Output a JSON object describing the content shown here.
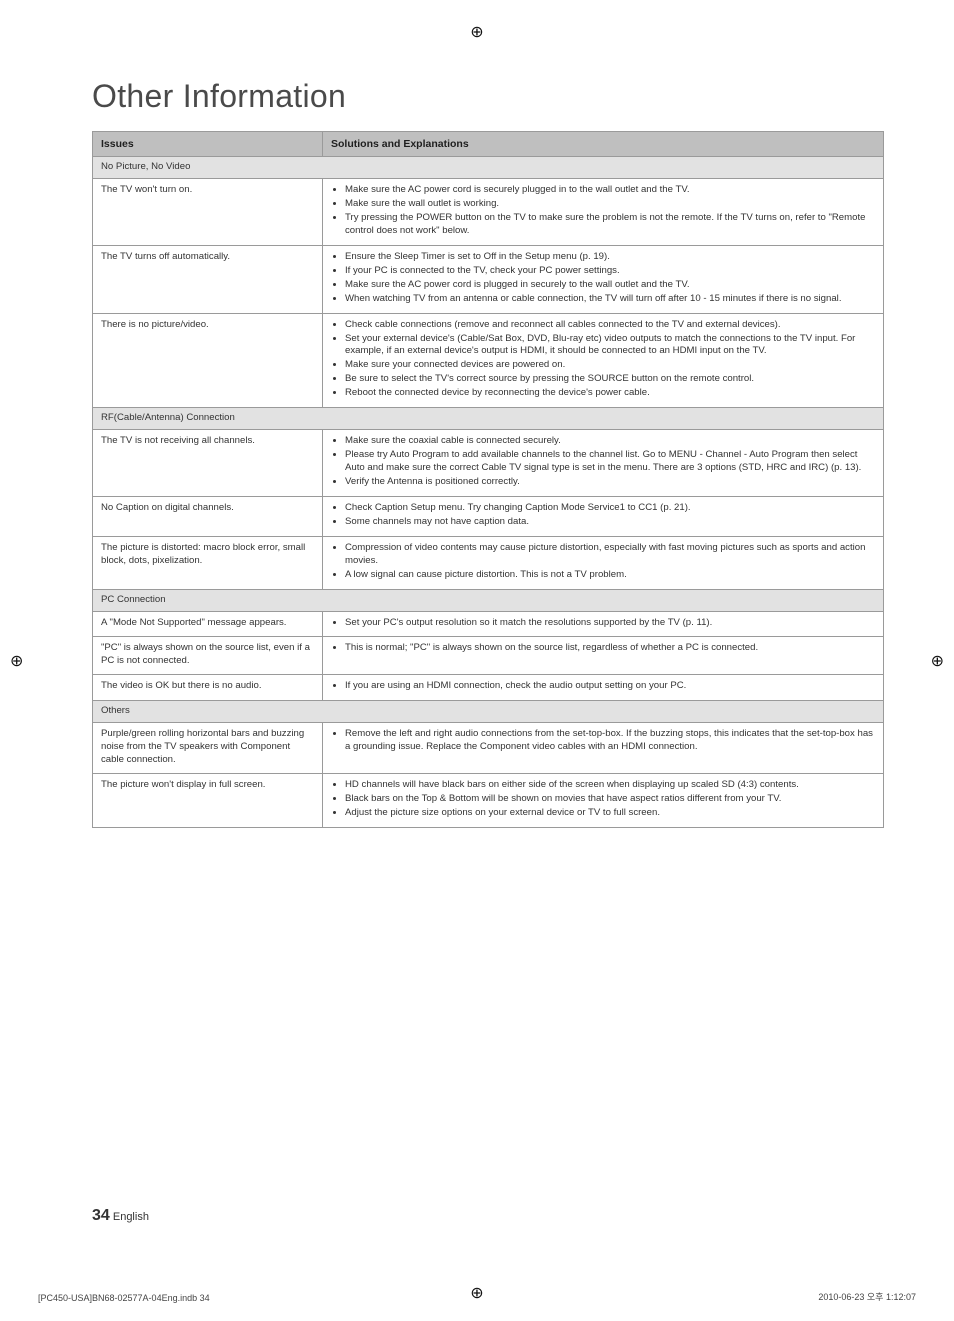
{
  "title": "Other Information",
  "headers": {
    "issues": "Issues",
    "solutions": "Solutions and Explanations"
  },
  "sections": [
    {
      "label": "No Picture, No Video"
    },
    {
      "label": "RF(Cable/Antenna) Connection"
    },
    {
      "label": "PC Connection"
    },
    {
      "label": "Others"
    }
  ],
  "rows": {
    "r1": {
      "issue": "The TV won't turn on.",
      "sol": [
        "Make sure the AC power cord is securely plugged in to the wall outlet and the TV.",
        "Make sure the wall outlet is working.",
        "Try pressing the POWER button on the TV to make sure the problem is not the remote. If the TV turns on, refer to \"Remote control does not work\" below."
      ]
    },
    "r2": {
      "issue": "The TV turns off automatically.",
      "sol": [
        "Ensure the Sleep Timer is set to Off in the Setup menu (p. 19).",
        "If your PC is connected to the TV, check your PC power settings.",
        "Make sure the AC power cord is plugged in securely to the wall outlet and the TV.",
        "When watching TV from an antenna or cable connection, the TV will turn off after 10 - 15 minutes if there is no signal."
      ]
    },
    "r3": {
      "issue": "There is no picture/video.",
      "sol": [
        "Check cable connections (remove and reconnect all cables connected to the TV and external devices).",
        "Set your external device's (Cable/Sat Box, DVD, Blu-ray etc) video outputs to match the connections to the TV input. For example, if an external device's output is HDMI, it should be connected to an HDMI input on the TV.",
        "Make sure your connected devices are powered on.",
        "Be sure to select the TV's correct source by pressing the SOURCE button on the remote control.",
        "Reboot the connected device by reconnecting the device's power cable."
      ]
    },
    "r4": {
      "issue": "The TV is not receiving all channels.",
      "sol": [
        "Make sure the coaxial cable is connected securely.",
        "Please try Auto Program to add available channels to the channel list. Go to MENU - Channel - Auto Program then select Auto and make sure the correct Cable TV signal type is set in the menu. There are 3 options (STD, HRC and IRC) (p. 13).",
        "Verify the Antenna is positioned correctly."
      ]
    },
    "r5": {
      "issue": "No Caption on digital channels.",
      "sol": [
        "Check Caption Setup menu. Try changing Caption Mode Service1 to CC1 (p. 21).",
        "Some channels may not have caption data."
      ]
    },
    "r6": {
      "issue": "The picture is distorted: macro block error, small block, dots, pixelization.",
      "sol": [
        "Compression of video contents may cause picture distortion, especially with fast moving pictures such as sports and action movies.",
        "A low signal can cause picture distortion. This is not a TV problem."
      ]
    },
    "r7": {
      "issue": "A \"Mode Not Supported\" message appears.",
      "sol": [
        "Set your PC's output resolution so it match the resolutions supported by the TV (p. 11)."
      ]
    },
    "r8": {
      "issue": "\"PC\" is always shown on the source list, even if a PC is not connected.",
      "sol": [
        "This is normal; \"PC\" is always shown on the source list, regardless of whether a PC is connected."
      ]
    },
    "r9": {
      "issue": "The video is OK but there is no audio.",
      "sol": [
        "If you are using an HDMI connection, check the audio output setting on your PC."
      ]
    },
    "r10": {
      "issue": "Purple/green rolling horizontal bars and buzzing noise from the TV speakers with Component cable connection.",
      "sol": [
        "Remove the left and right audio connections from the set-top-box. If the buzzing stops, this indicates that the set-top-box has a grounding issue. Replace the Component video cables with an HDMI connection."
      ]
    },
    "r11": {
      "issue": "The picture won't display in full screen.",
      "sol": [
        "HD channels will have black bars on either side of the screen when displaying up scaled SD (4:3) contents.",
        "Black bars on the Top & Bottom will be shown on movies that have aspect ratios different from your TV.",
        "Adjust the picture size options on your external device or TV to full screen."
      ]
    }
  },
  "pageNumber": "34",
  "pageLang": "English",
  "footer": {
    "left": "[PC450-USA]BN68-02577A-04Eng.indb   34",
    "right": "2010-06-23   오후 1:12:07"
  }
}
